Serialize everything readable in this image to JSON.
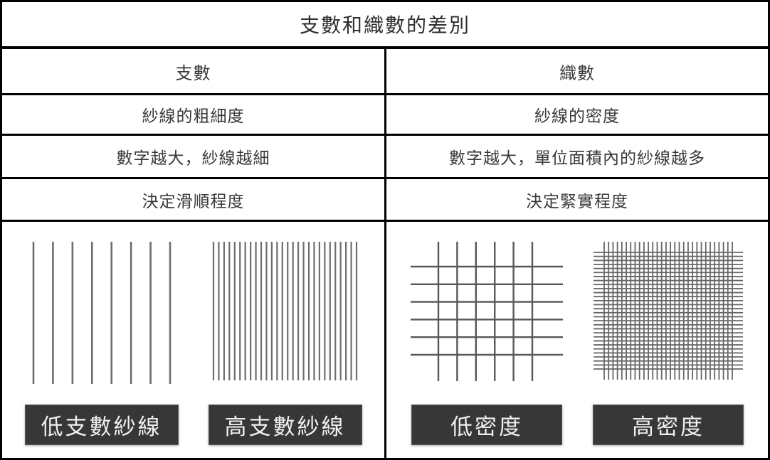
{
  "table": {
    "title": "支數和織數的差別",
    "columns": [
      {
        "header": "支數",
        "rows": [
          "紗線的粗細度",
          "數字越大，紗線越細",
          "決定滑順程度"
        ]
      },
      {
        "header": "織數",
        "rows": [
          "紗線的密度",
          "數字越大，單位面積內的紗線越多",
          "決定緊實程度"
        ]
      }
    ]
  },
  "illustrations": {
    "yarn": {
      "low": {
        "label": "低支數紗線",
        "pattern": "vertical-lines",
        "line_count": 8
      },
      "high": {
        "label": "高支數紗線",
        "pattern": "vertical-lines",
        "line_count": 28
      }
    },
    "density": {
      "low": {
        "label": "低密度",
        "pattern": "grid",
        "v_lines": 6,
        "h_lines": 6
      },
      "high": {
        "label": "高密度",
        "pattern": "grid",
        "v_lines": 30,
        "h_lines": 30
      }
    }
  },
  "colors": {
    "border": "#000000",
    "text": "#3a3a3a",
    "label_bg": "#373737",
    "label_text": "#f0f0f0",
    "yarn_line": "#6e6e6e",
    "grid_line_sparse": "#585858",
    "grid_line_dense": "#666666"
  }
}
